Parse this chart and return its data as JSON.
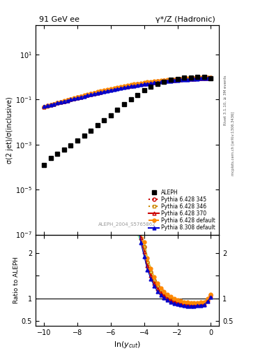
{
  "title_left": "91 GeV ee",
  "title_right": "γ*/Z (Hadronic)",
  "ylabel_main": "σ(2 jet)/σ(inclusive)",
  "ylabel_ratio": "Ratio to ALEPH",
  "xlabel": "ln(y_{cut})",
  "ylim_main": [
    1e-07,
    200
  ],
  "ylim_ratio": [
    0.4,
    2.4
  ],
  "xlim": [
    -10.5,
    0.5
  ],
  "watermark": "ALEPH_2004_S5765862",
  "right_label": "Rivet 3.1.10, ≥ 3M events",
  "right_label2": "mcplots.cern.ch [arXiv:1306.3436]",
  "legend_entries": [
    "ALEPH",
    "Pythia 6.428 345",
    "Pythia 6.428 346",
    "Pythia 6.428 370",
    "Pythia 6.428 default",
    "Pythia 8.308 default"
  ]
}
